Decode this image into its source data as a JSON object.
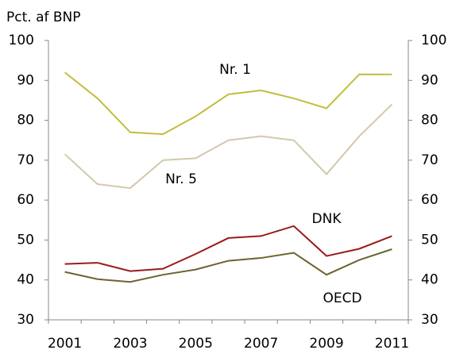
{
  "chart_data": {
    "type": "line",
    "y_label": "Pct. af BNP",
    "categories": [
      "2001",
      null,
      "2003",
      null,
      "2005",
      null,
      "2007",
      null,
      "2009",
      null,
      "2011"
    ],
    "series": [
      {
        "name": "Nr. 1",
        "color": "#c4bd3c",
        "values": [
          92,
          85.5,
          77,
          76.5,
          81,
          86.5,
          87.5,
          85.5,
          83,
          91.5,
          91.5
        ]
      },
      {
        "name": "Nr. 5",
        "color": "#d2c9ad",
        "values": [
          71.5,
          64,
          63,
          70,
          70.5,
          75,
          76,
          75,
          66.5,
          76,
          84
        ]
      },
      {
        "name": "DNK",
        "color": "#9b1b1b",
        "values": [
          44,
          44.3,
          42.2,
          42.8,
          46.5,
          50.5,
          51,
          53.5,
          46,
          47.8,
          51
        ]
      },
      {
        "name": "OECD",
        "color": "#6b6430",
        "values": [
          42,
          40.2,
          39.5,
          41.3,
          42.6,
          44.8,
          45.5,
          46.8,
          41.3,
          45,
          47.7
        ]
      }
    ],
    "ylim": [
      30,
      100
    ],
    "yticks": [
      30,
      40,
      50,
      60,
      70,
      80,
      90,
      100
    ],
    "y2lim": [
      30,
      100
    ],
    "y2ticks": [
      30,
      40,
      50,
      60,
      70,
      80,
      90,
      100
    ]
  }
}
